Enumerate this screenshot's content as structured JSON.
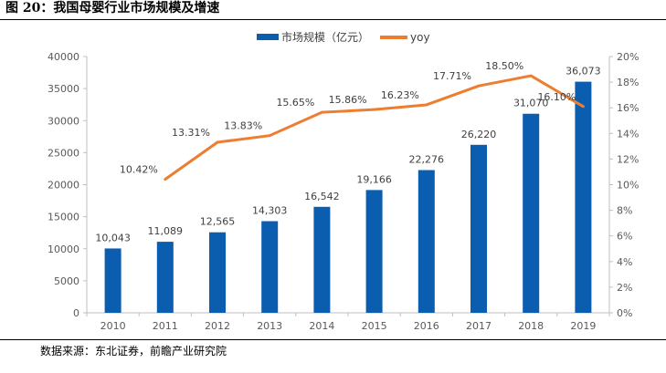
{
  "figure": {
    "title": "图 20：我国母婴行业市场规模及增速",
    "source": "数据来源：东北证券，前瞻产业研究院"
  },
  "chart_data": {
    "type": "bar",
    "categories": [
      "2010",
      "2011",
      "2012",
      "2013",
      "2014",
      "2015",
      "2016",
      "2017",
      "2018",
      "2019"
    ],
    "series": [
      {
        "name": "市场规模（亿元）",
        "type": "bar",
        "axis": "left",
        "color": "#0B5DB0",
        "values": [
          10043,
          11089,
          12565,
          14303,
          16542,
          19166,
          22276,
          26220,
          31070,
          36073
        ],
        "labels": [
          "10,043",
          "11,089",
          "12,565",
          "14,303",
          "16,542",
          "19,166",
          "22,276",
          "26,220",
          "31,070",
          "36,073"
        ]
      },
      {
        "name": "yoy",
        "type": "line",
        "axis": "right",
        "color": "#ED7D31",
        "values": [
          null,
          10.42,
          13.31,
          13.83,
          15.65,
          15.86,
          16.23,
          17.71,
          18.5,
          16.1
        ],
        "labels": [
          "",
          "10.42%",
          "13.31%",
          "13.83%",
          "15.65%",
          "15.86%",
          "16.23%",
          "17.71%",
          "18.50%",
          "16.10%"
        ]
      }
    ],
    "y_left": {
      "min": 0,
      "max": 40000,
      "ticks": [
        "0",
        "5000",
        "10000",
        "15000",
        "20000",
        "25000",
        "30000",
        "35000",
        "40000"
      ]
    },
    "y_right": {
      "min": 0,
      "max": 20,
      "unit": "%",
      "ticks": [
        "0%",
        "2%",
        "4%",
        "6%",
        "8%",
        "10%",
        "12%",
        "14%",
        "16%",
        "18%",
        "20%"
      ]
    },
    "legend_position": "top-center",
    "grid": false
  }
}
